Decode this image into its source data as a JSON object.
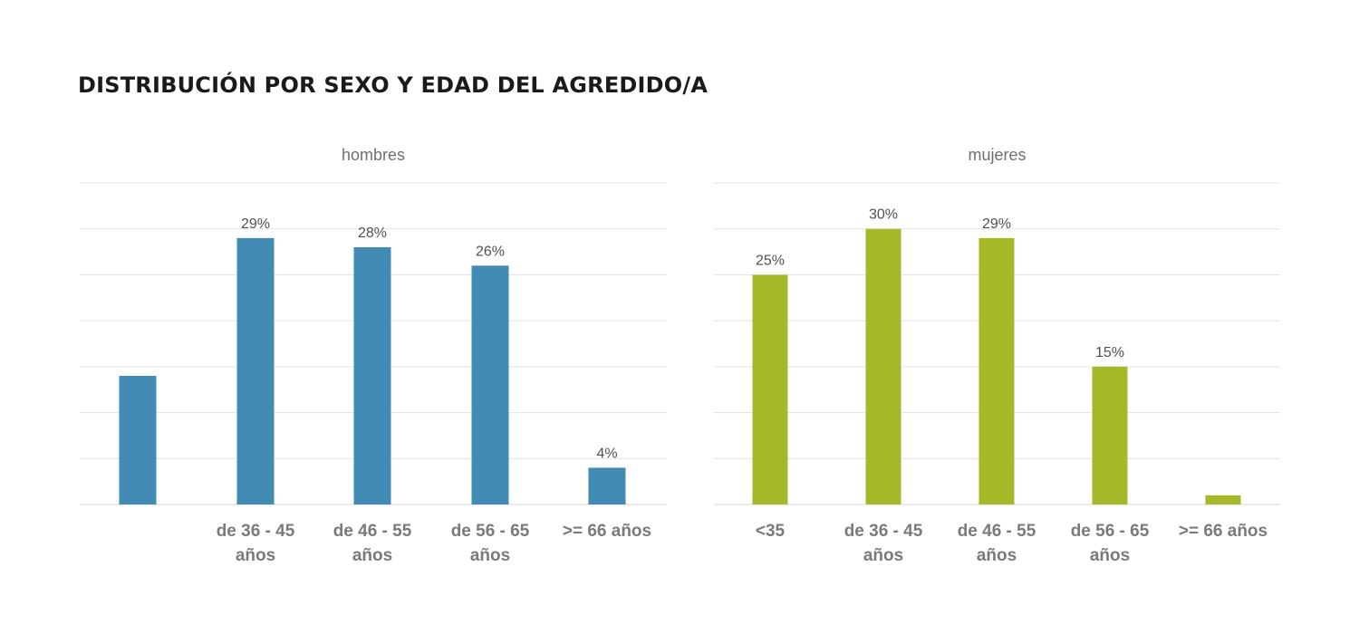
{
  "title": "DISTRIBUCIÓN POR SEXO Y EDAD DEL AGREDIDO/A",
  "colors": {
    "hombres": "#428bb4",
    "mujeres": "#a6b828"
  },
  "chart_data": [
    {
      "type": "bar",
      "title": "hombres",
      "categories": [
        "",
        "de 36 - 45 años",
        "de 46 - 55 años",
        "de 56 - 65 años",
        ">= 66 años"
      ],
      "category_lines": [
        [],
        [
          "de 36 - 45",
          "años"
        ],
        [
          "de 46 - 55",
          "años"
        ],
        [
          "de 56 - 65",
          "años"
        ],
        [
          ">= 66 años"
        ]
      ],
      "values": [
        14,
        29,
        28,
        26,
        4
      ],
      "data_labels": [
        "",
        "29%",
        "28%",
        "26%",
        "4%"
      ],
      "ylim": [
        0,
        35
      ],
      "grid": true,
      "color": "#428bb4"
    },
    {
      "type": "bar",
      "title": "mujeres",
      "categories": [
        "<35",
        "de 36 - 45 años",
        "de 46 - 55 años",
        "de 56 - 65 años",
        ">= 66 años"
      ],
      "category_lines": [
        [
          "<35"
        ],
        [
          "de 36 - 45",
          "años"
        ],
        [
          "de 46 - 55",
          "años"
        ],
        [
          "de 56 - 65",
          "años"
        ],
        [
          ">= 66 años"
        ]
      ],
      "values": [
        25,
        30,
        29,
        15,
        1
      ],
      "data_labels": [
        "25%",
        "30%",
        "29%",
        "15%",
        ""
      ],
      "ylim": [
        0,
        35
      ],
      "grid": true,
      "color": "#a6b828"
    }
  ]
}
